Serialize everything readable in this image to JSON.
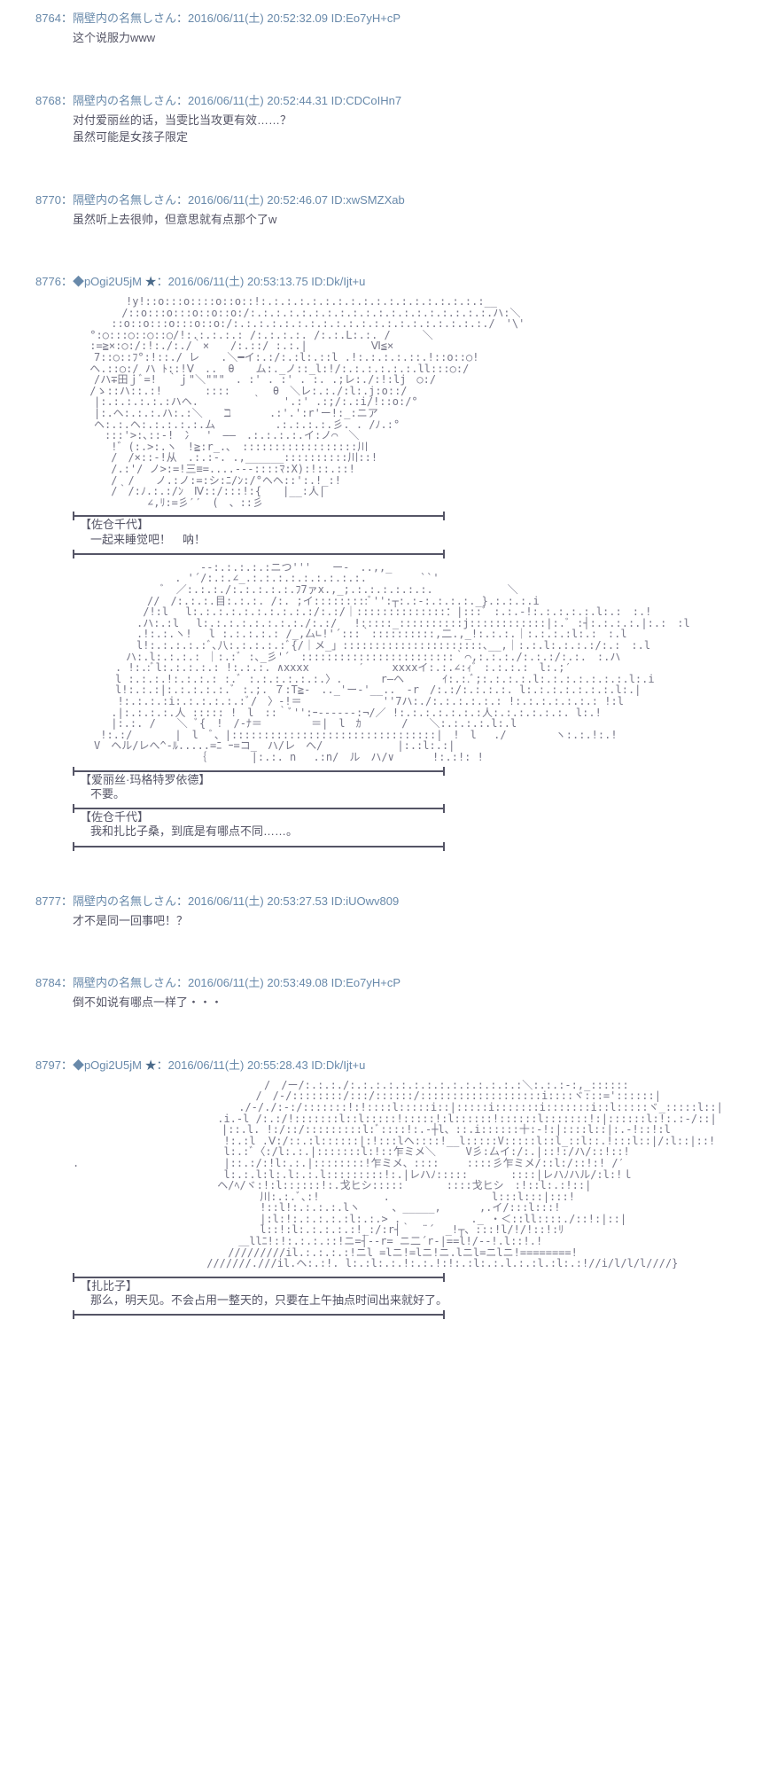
{
  "posts": [
    {
      "number": "8764",
      "name": "隔壁内の名無しさん",
      "date": "2016/06/11(土) 20:52:32.09",
      "id": "ID:Eo7yH+cP",
      "body": "这个说服力www"
    },
    {
      "number": "8768",
      "name": "隔壁内の名無しさん",
      "date": "2016/06/11(土) 20:52:44.31",
      "id": "ID:CDCoIHn7",
      "body": "对付爱丽丝的话，当雯比当攻更有效……？\n虽然可能是女孩子限定"
    },
    {
      "number": "8770",
      "name": "隔壁内の名無しさん",
      "date": "2016/06/11(土) 20:52:46.07",
      "id": "ID:xwSMZXab",
      "body": "虽然听上去很帅，但意思就有点那个了w"
    },
    {
      "number": "8776",
      "name": "◆pOgi2U5jM ★",
      "date": "2016/06/11(土) 20:53:13.75",
      "id": "ID:Dk/Ijt+u",
      "trip": true,
      "aa1": "　　　　　!y!::o:::o::::o::o::!:.:.:.:.:.:.:.:.:.:.:.:.:.:.:.:.:.:__\n　　　　 /::o:::o:::o::o::o:/:.:.:.:.:.:.:.:.:.:.:.:.:.:.:.:.:.:.:.ハ:＼\n　　　 ::o::o:::o:::o::o:/:.:.:.:.:.:.:.:.:.:.:.:.:.:.:.:.:.:.:.:./　'\\'\n 　°:○:::○::○::○/!:.:.:.:.: /:.:.:.:. /:.:.L:.:. /　　　＼\n　 :=≧×:○:/:!:./:./｀×　　/:.::/ :.:.|　　　　　　Ⅵ≦×\n　　7::○::ﾌ°:!::./ レ　　.＼━イ:.:/:.:l:.::l .!:.:.:.:.::.!::o::○!\n　 ヘ.::○:/ ハ ﾄ::!Ⅴ　..　θ　　ム:._ノ::_l:!/:.:.:.:.:.:.ll:::○:/\n　　/ハ∓田ｊﾞ=!　｀ｊ\"＼\"\"\"　. :' . :' . :. .;レ:./:!:lj　○:/\n　 /ゝ::ハ::.:!　　　　::::　　　　θ　＼レ:.:./:l:.j:o::/\n　　|:.:.:.:.:.:ハヘ.　　　　　｀　　'.:' .:;/:.:i/!::o:/°\n　　|:.ヘ:.:.:.ハ:.:＼　　ℶ　　　 .:'.':r'ー!:_:ニア\n　　ヘ:.:.ヘ:.:.:.:.:.ム　　　　　 .:.:.:.:.彡. . /ﾉ.:°\n　　　:::'>:､::-!　冫　'　――　.:.:.:.:.イ:ノ⌒　＼\n　　　 !゛(:.>:.ヽ　!≧:r_.､　::::::::::::::::::川\n　　　 /　/×::-!从　.:.:-. .,______::::::::::川::!\n　　　 /.:'/ ノ>:=!三≡=....---::::ﾏ:X):!::.::!\n　　　 /　/　　ノ.:ノ:=:シ:ﾆ/ﾝ:/°ヘヘ::':.!_:!\n　　　 /｀/:ﾉ.:.:/ﾝ　Ⅳ::/:::!:{　　|__:人|\n　　　　　　　∠,ﾘ:=彡′′　(　、::彡",
      "char1": "【佐仓千代】",
      "line1": "一起来睡觉吧！　呐！",
      "aa2": "　　　　　　　　　　　　-‐:.:.:.:.:ニつ'''　　ー-　..,,_\n　　　　　　　　　 . '´/:.:.∠_.:.:.:.:.:.:.:.:.:.　　　　　``'\n　　　　　　　　 ﾞ　／:.:.:./:.:.:.:.:.ﾌ7ァx.,_;.:.:.:.:.:.:.　　　　　　　＼\n　　　　　　　//　/:.:.:.目:.:.:. /:. ;イ:::::::::ﾞ'':┬:.:-:.:.:.:._}.:.:.:.i\n　　　　　　 /!:l　 l:.:.:.:.:.:.:.:.:.:/:.:/｜::::::::::::::：|:::ﾞ :.:.-!:.:.:.:.:.l:.:　:.!\n　　　　　　.ハ:.:l　 l:.:.:.:.:.:.:.:./:.:/　 !:::::_::::::::::j::::::::::::|:.ﾞ :┤:.:.:.:.|:.:　:l\n　　　　　　.!:.:.ヽ! 　l :.:.:.:.: /_,厶∟!'´:::｀::::::::::,二.,_!:.:.:.｜:.:.:.:l:.:　:.l\n　　　　　　l!:.:.:.:.:ﾞ､八:.:.:.:.:ﾞ{/｜メ_」::::::::::::::::::::::､__,｜:.:.l:.:.:.:/:.:　:.l\n　　　　　ハ:.l:.:.:.: ｜:.:ﾞ :､_彡'´　::::::::::::::::::::::::｀⌒,:.:.:./:.:.:/:.:.　:.ハ\n　　　　. !:.:ﾞl:.:.:.:.: !:.:.:. ∧xxxx　　　　 ′　　 xxxxイ:.:.∠:ｨﾞ :.:.:.:　l:.;′\n　　　　l :.:.:.!:.:.:.: :.ﾞ :.:.:.:.:.:.〉.　　　 r―ヘ　　　 ｲ:.:.ﾞ;:.:.:.:.l:.:.:.:.:.:.:.l:.i\n　　　　l!:.:.:|:.:.:.:.:.ﾞ :.;. ７:T≧‐　.._'ー‐'__..　-r　/:.:/:.:.:.:. l:.:.:.:.:.:.:.l:.|\n　　　  !:.:.:.:i:.:.:.:.:.:ﾞ/　〉-!＝　　　　　　　 ''7ハ:./:.:.:.:.:.: !:.:.:.:.:.:.: !:l\n　　　 .|:.:.:.:.人 ::::: !　l　::｀ﾞ'':ｰ‐----‐:¬/／ !:.:.:.:.:.:.:人:.:.:.:.:.:. l:.!\n　　　 |:.:. /　　＼ ﾞ{　!　/-ﾅ＝　　　　 ＝|　l　ｶ 　 　 /　　＼:.:.:.:.l:.l\n　　 !:.:/　　　　|　l　ﾞ、|::::::::::::::::::::::::::::::::|　!　l 　./　　　　 ヽ:.:.!:.!\n　　V　ヘル/レへ^-ﾙ.....=ﾆ ｰ=コ_　ハ/レ　へ/　　　　　　　|:.:l:.:|\n　　　　　　　　　　　 ｛ 　　　 |:.:. n　 .:n/　ル　ハ/∨ 　　　!:.:!: !",
      "char2": "【爱丽丝·玛格特罗依德】",
      "line2": "不要。",
      "char3": "【佐仓千代】",
      "line3": "我和扎比子桑，到底是有哪点不同……。"
    },
    {
      "number": "8777",
      "name": "隔壁内の名無しさん",
      "date": "2016/06/11(土) 20:53:27.53",
      "id": "ID:iUOwv809",
      "body": "才不是同一回事吧！？"
    },
    {
      "number": "8784",
      "name": "隔壁内の名無しさん",
      "date": "2016/06/11(土) 20:53:49.08",
      "id": "ID:Eo7yH+cP",
      "body": "倒不如说有哪点一样了・・・"
    },
    {
      "number": "8797",
      "name": "◆pOgi2U5jM ★",
      "date": "2016/06/11(土) 20:55:28.43",
      "id": "ID:Dk/Ijt+u",
      "trip": true,
      "aa1": "　　　　　　　　　　　　　　　　　　/　/ー/:.:.:./:.:.:.:.:.:.:.:.:.:.:.:.:.:＼:.:.:-:,_::::::\n　　　　　　　　　　　　　　　　  /　/-/::::::::/:::/::::::/:::::::::::::::::::i::::ヾ:::='::::::|\n　　　　　　　　　　　　　　　 ./-/./:-:/:::::::!:!::::l:::::i::|:::::i:::::::i:::::::i::l:::::ヾ_:::::l::|\n　　　　　　　　　　　　　 .i.-l /:.:/!:::::::l::l:::::!:::::!:l::::::!::::::l:::::::!:|::::::l:!:.:-/::|\n　　　　　　　　　　　　　　|::.l. !:/::/:::::::::l:ﾞ::::!:.-┼l、::.i::::::十:‐!:|::::l::|:.-!::!:l\n　　　　　　　　　　　　　  !:.:l .Ⅴ:/::.:l::::::|:!:::lヘ::::!__l:::::V:::::l::l_::l::.!:::l::|/:l::|::!\n　　　　　　　　　　　　　  l:.:ﾞ〈:/l:.:.|:::::::l:!::乍ミメ＼   　V彡:厶イ:/:.|::!:/ハ/::!::!\n.　　　　　　　　　　　　　 |::.:/:!l:.:.|::::::::!乍ミメ、::::　　 ::::彡乍ミメ/::l:/::!:! /′\n　　　　　　　　　　　　　  l:.:.l:l:.l:.:.l:::::::::!:.|レハﾉ:::::　　　　::::|レハﾉハル/:l:!ｌ\n　　　　　　　　　　　　　 ヘ/ﾍ/ヾ:!:l::::::!:.戈ヒシ:::::　　　　::::戈ヒシ　:!::l:.:!::|\n　　　　　　　　　　　　　　　　　 川:.:.ﾞ､:!　　　　　　.　　　　　　　　　 l:::l:::|:::!\n　　　　　　　　　　　　　　　　　 !::l!:.:.:.:.lヽ　　　、_____,　　　 ,.イ/:::l:::!\n　　　　　　　　　　　　　　　　　 |:l:!:.:.:.:.:l:.:.> .　　　　　　 ._ ・＜::ll::::./::!:|::|\n　　　　　　　　　　　　　　　　　 l::!:l:.:.:.:.:!_:/:r┤｀　¨´　_!┬、:::!l/!/!::!:ﾘ\n　　　　　　　　　　 　　　　　＿llﾆ!:!:.:.:.::!ニ=┤--r= ニ二´r‐|==l!/--!.l::!.!\n　　　　　　　　　　　　　　 /////////il.:.:.:.:!ニl =lニ!=lニ!ニ.lニl=ニlニ!========!\n　　　　　　　　　　　　 ///////.///il.ヘ:.:!. l:.:l:.:.!:.:.!:!:.:l:.:.l.:.:l.:l:.:!//i/l/l/l////}",
      "char1": "【扎比子】",
      "line1": "那么，明天见。不会占用一整天的，只要在上午抽点时间出来就好了。"
    }
  ]
}
